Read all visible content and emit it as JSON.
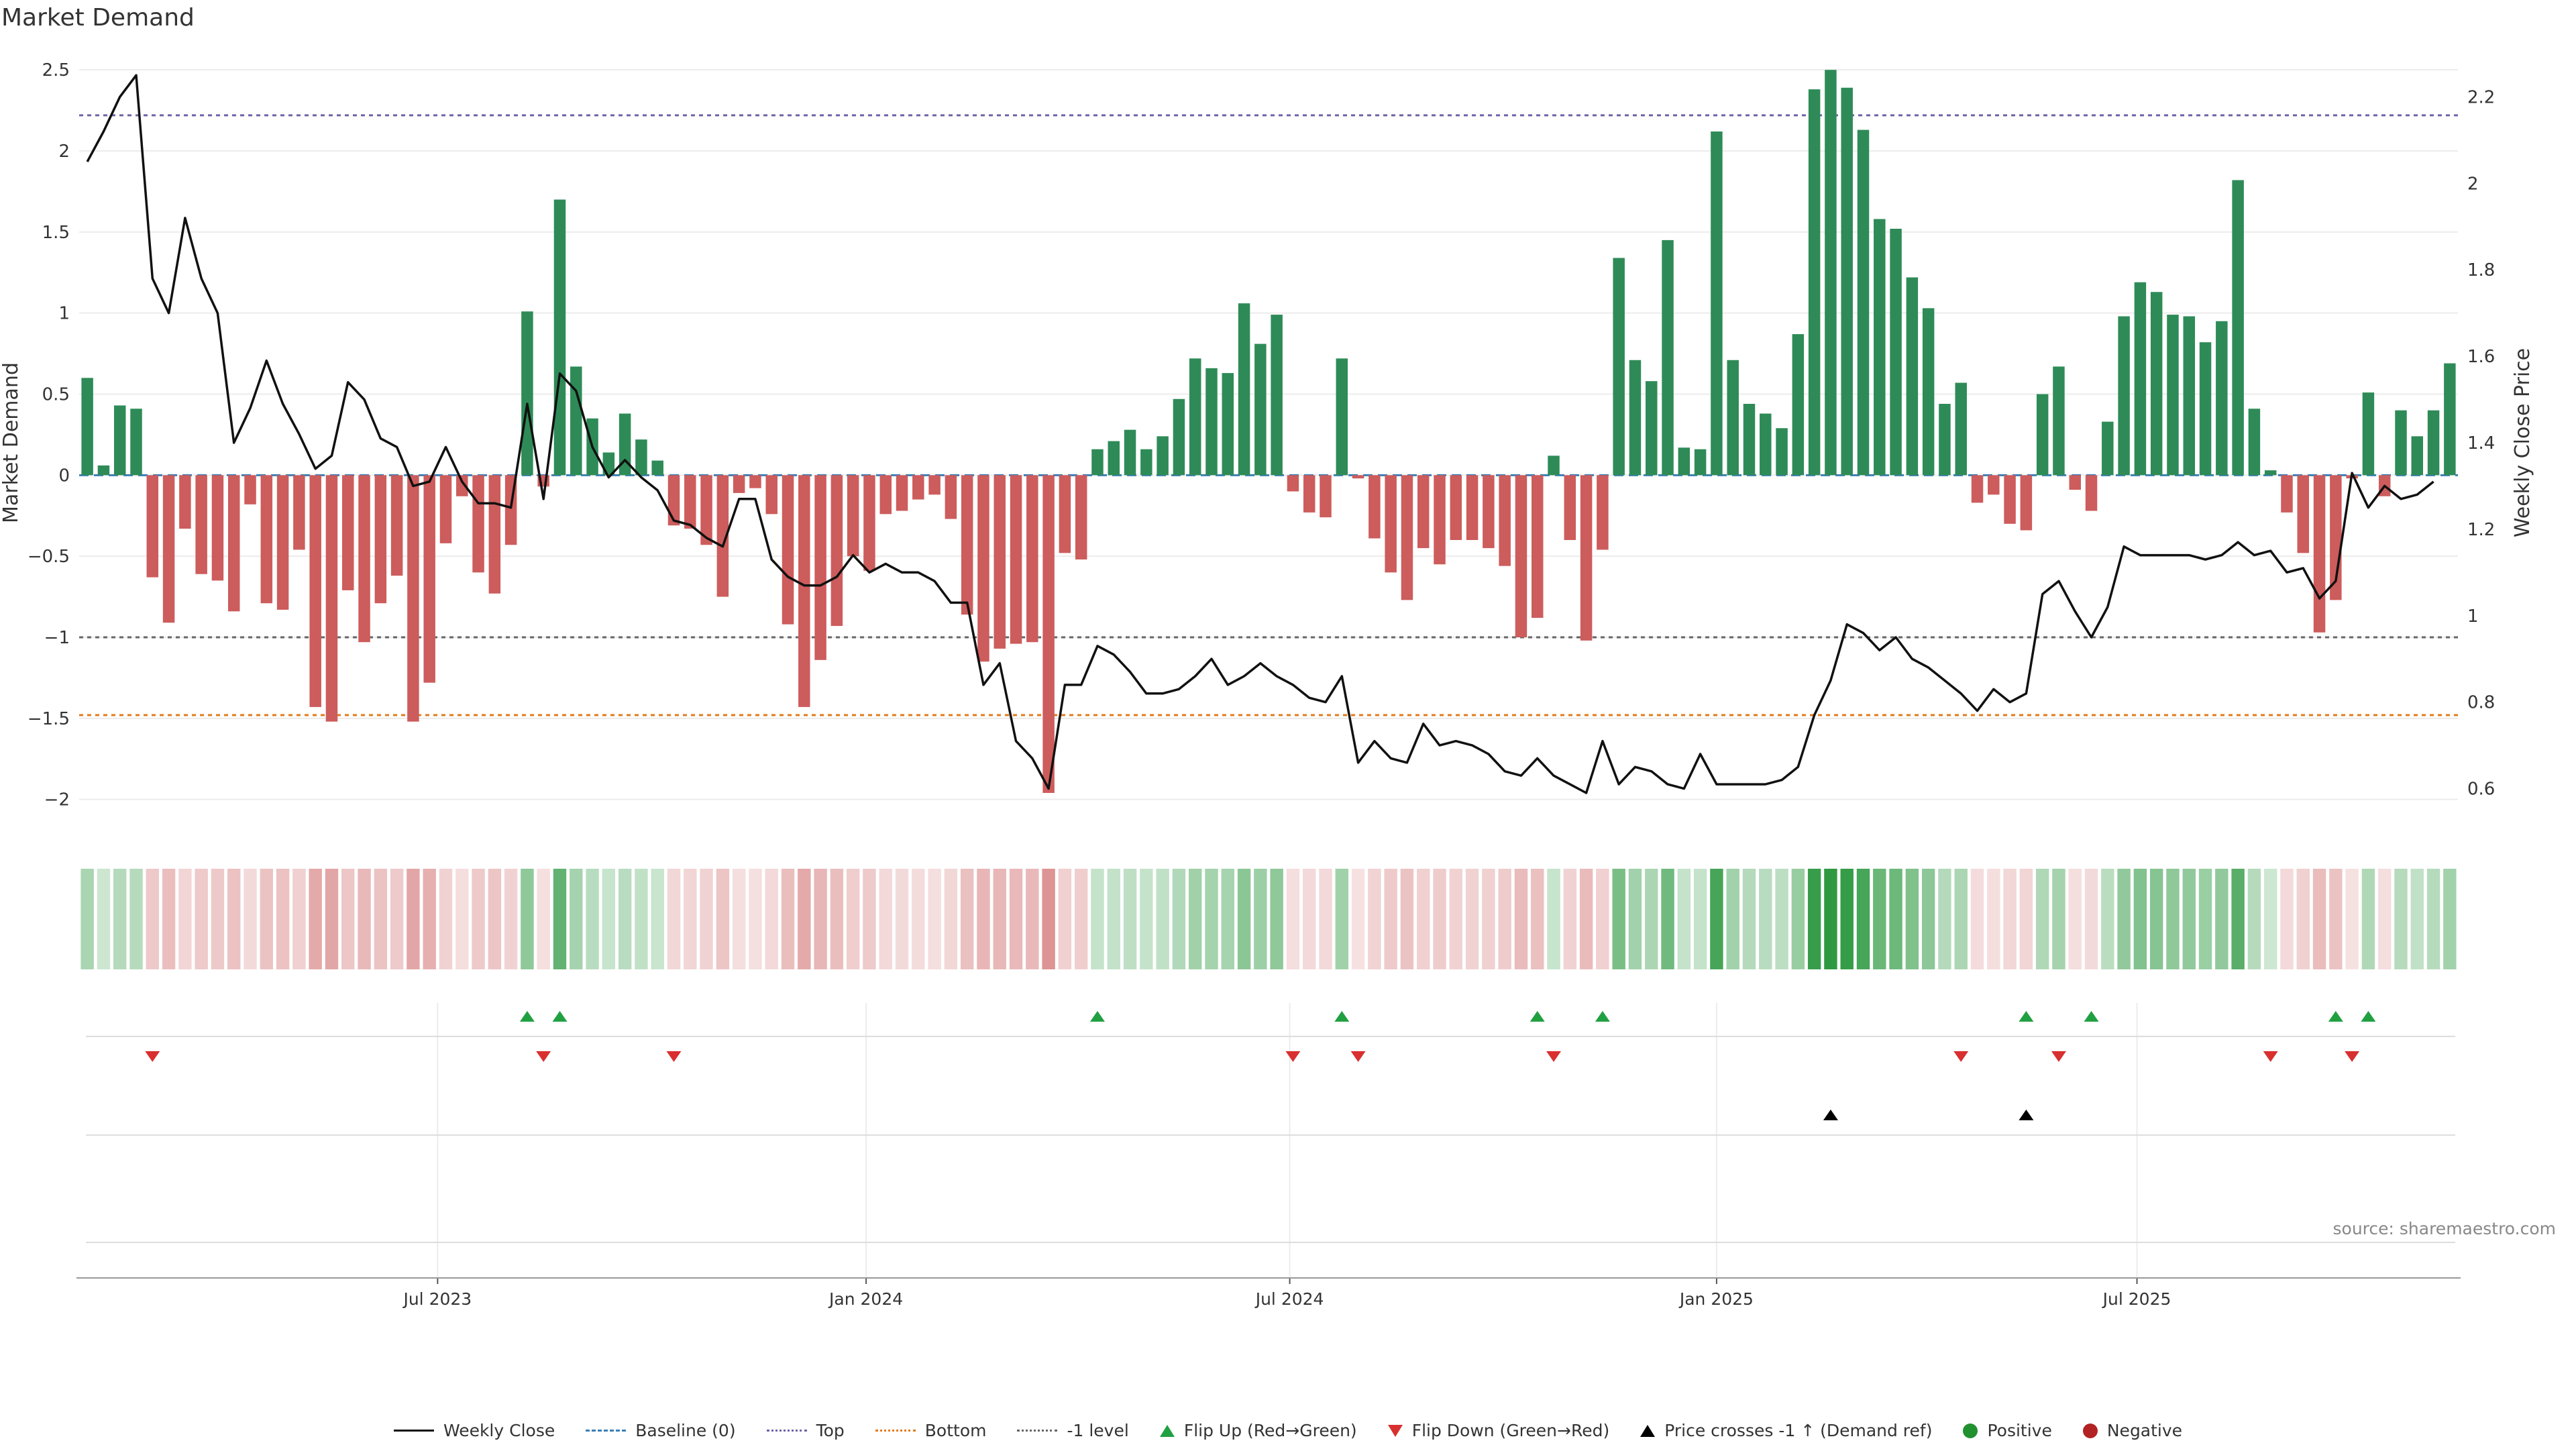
{
  "title": "Market Demand",
  "source": "source: sharemaestro.com",
  "colors": {
    "positive_bar": "#2e8b57",
    "negative_bar": "#cd5c5c",
    "price_line": "#111111",
    "top_line": "#6c63a8",
    "bottom_line": "#e07b1a",
    "minus_one_line": "#666666",
    "flip_up": "#21a042",
    "flip_down": "#d8302f",
    "cross": "#000000"
  },
  "legend": [
    {
      "label": "Weekly Close",
      "icon": "solid-line"
    },
    {
      "label": "Baseline (0)",
      "icon": "dashed-line-blue"
    },
    {
      "label": "Top",
      "icon": "dotted-line-purple"
    },
    {
      "label": "Bottom",
      "icon": "dotted-line-orange"
    },
    {
      "label": "-1 level",
      "icon": "dotted-line-gray"
    },
    {
      "label": "Flip Up (Red→Green)",
      "icon": "triangle-up-green"
    },
    {
      "label": "Flip Down (Green→Red)",
      "icon": "triangle-down-red"
    },
    {
      "label": "Price crosses -1 ↑ (Demand ref)",
      "icon": "triangle-up-black"
    },
    {
      "label": "Positive",
      "icon": "circle-green"
    },
    {
      "label": "Negative",
      "icon": "circle-red"
    }
  ],
  "chart_data": {
    "type": "bar",
    "title": "Market Demand",
    "xlabel": "",
    "ylabel": "Market Demand",
    "y2label": "Weekly Close Price",
    "ylim": [
      -2.2,
      2.6
    ],
    "y2lim": [
      0.5,
      2.3
    ],
    "yticks": [
      -2,
      -1.5,
      -1,
      -0.5,
      0,
      0.5,
      1,
      1.5,
      2,
      2.5
    ],
    "ytick_labels": [
      "−2",
      "−1.5",
      "−1",
      "−0.5",
      "0",
      "0.5",
      "1",
      "1.5",
      "2",
      "2.5"
    ],
    "y2ticks": [
      0.6,
      0.8,
      1,
      1.2,
      1.4,
      1.6,
      1.8,
      2,
      2.2
    ],
    "y2tick_labels": [
      "0.6",
      "0.8",
      "1",
      "1.2",
      "1.4",
      "1.6",
      "1.8",
      "2",
      "2.2"
    ],
    "x_start": "2023-01-01",
    "x_interval_days": 7,
    "xticks": [
      {
        "label": "Jul 2023",
        "index": 22
      },
      {
        "label": "Jan 2024",
        "index": 48.3
      },
      {
        "label": "Jul 2024",
        "index": 74.3
      },
      {
        "label": "Jan 2025",
        "index": 100.5
      },
      {
        "label": "Jul 2025",
        "index": 126.3
      }
    ],
    "reference_lines": {
      "top": 2.22,
      "bottom": -1.48,
      "minus_one": -1.0,
      "baseline": 0
    },
    "grid": true,
    "legend_position": "bottom",
    "demand": [
      0.6,
      0.06,
      0.43,
      0.41,
      -0.63,
      -0.91,
      -0.33,
      -0.61,
      -0.65,
      -0.84,
      -0.18,
      -0.79,
      -0.83,
      -0.46,
      -1.43,
      -1.52,
      -0.71,
      -1.03,
      -0.79,
      -0.62,
      -1.52,
      -1.28,
      -0.42,
      -0.13,
      -0.6,
      -0.73,
      -0.43,
      1.01,
      -0.07,
      1.7,
      0.67,
      0.35,
      0.14,
      0.38,
      0.22,
      0.09,
      -0.31,
      -0.33,
      -0.43,
      -0.75,
      -0.11,
      -0.08,
      -0.24,
      -0.92,
      -1.43,
      -1.14,
      -0.93,
      -0.5,
      -0.59,
      -0.24,
      -0.22,
      -0.15,
      -0.12,
      -0.27,
      -0.86,
      -1.15,
      -1.07,
      -1.04,
      -1.03,
      -1.96,
      -0.48,
      -0.52,
      0.16,
      0.21,
      0.28,
      0.16,
      0.24,
      0.47,
      0.72,
      0.66,
      0.63,
      1.06,
      0.81,
      0.99,
      -0.1,
      -0.23,
      -0.26,
      0.72,
      -0.02,
      -0.39,
      -0.6,
      -0.77,
      -0.45,
      -0.55,
      -0.4,
      -0.4,
      -0.45,
      -0.56,
      -1.0,
      -0.88,
      0.12,
      -0.4,
      -1.02,
      -0.46,
      1.34,
      0.71,
      0.58,
      1.45,
      0.17,
      0.16,
      2.12,
      0.71,
      0.44,
      0.38,
      0.29,
      0.87,
      2.38,
      2.5,
      2.39,
      2.13,
      1.58,
      1.52,
      1.22,
      1.03,
      0.44,
      0.57,
      -0.17,
      -0.12,
      -0.3,
      -0.34,
      0.5,
      0.67,
      -0.09,
      -0.22,
      0.33,
      0.98,
      1.19,
      1.13,
      0.99,
      0.98,
      0.82,
      0.95,
      1.82,
      0.41,
      0.03,
      -0.23,
      -0.48,
      -0.97,
      -0.77,
      -0.02,
      0.51,
      -0.13,
      0.4,
      0.24,
      0.4,
      0.69
    ],
    "price": [
      2.05,
      2.12,
      2.2,
      2.25,
      1.78,
      1.7,
      1.92,
      1.78,
      1.7,
      1.4,
      1.48,
      1.59,
      1.49,
      1.42,
      1.34,
      1.37,
      1.54,
      1.5,
      1.41,
      1.39,
      1.3,
      1.31,
      1.39,
      1.31,
      1.26,
      1.26,
      1.25,
      1.49,
      1.27,
      1.56,
      1.52,
      1.39,
      1.32,
      1.36,
      1.32,
      1.29,
      1.22,
      1.21,
      1.18,
      1.16,
      1.27,
      1.27,
      1.13,
      1.09,
      1.07,
      1.07,
      1.09,
      1.14,
      1.1,
      1.12,
      1.1,
      1.1,
      1.08,
      1.03,
      1.03,
      0.84,
      0.89,
      0.71,
      0.67,
      0.6,
      0.84,
      0.84,
      0.93,
      0.91,
      0.87,
      0.82,
      0.82,
      0.83,
      0.86,
      0.9,
      0.84,
      0.86,
      0.89,
      0.86,
      0.84,
      0.81,
      0.8,
      0.86,
      0.66,
      0.71,
      0.67,
      0.66,
      0.75,
      0.7,
      0.71,
      0.7,
      0.68,
      0.64,
      0.63,
      0.67,
      0.63,
      0.61,
      0.59,
      0.71,
      0.61,
      0.65,
      0.64,
      0.61,
      0.6,
      0.68,
      0.61,
      0.61,
      0.61,
      0.61,
      0.62,
      0.65,
      0.77,
      0.85,
      0.98,
      0.96,
      0.92,
      0.95,
      0.9,
      0.88,
      0.85,
      0.82,
      0.78,
      0.83,
      0.8,
      0.82,
      1.05,
      1.08,
      1.01,
      0.95,
      1.02,
      1.16,
      1.14,
      1.14,
      1.14,
      1.14,
      1.13,
      1.14,
      1.17,
      1.14,
      1.15,
      1.1,
      1.11,
      1.04,
      1.08,
      1.33,
      1.25,
      1.3,
      1.27,
      1.28,
      1.31
    ],
    "flip_up_indices": [
      27,
      29,
      62,
      77,
      89,
      93,
      119,
      123,
      138,
      140
    ],
    "flip_down_indices": [
      4,
      28,
      36,
      74,
      78,
      90,
      115,
      121,
      134,
      139
    ],
    "price_cross_indices": [
      107,
      119
    ]
  }
}
